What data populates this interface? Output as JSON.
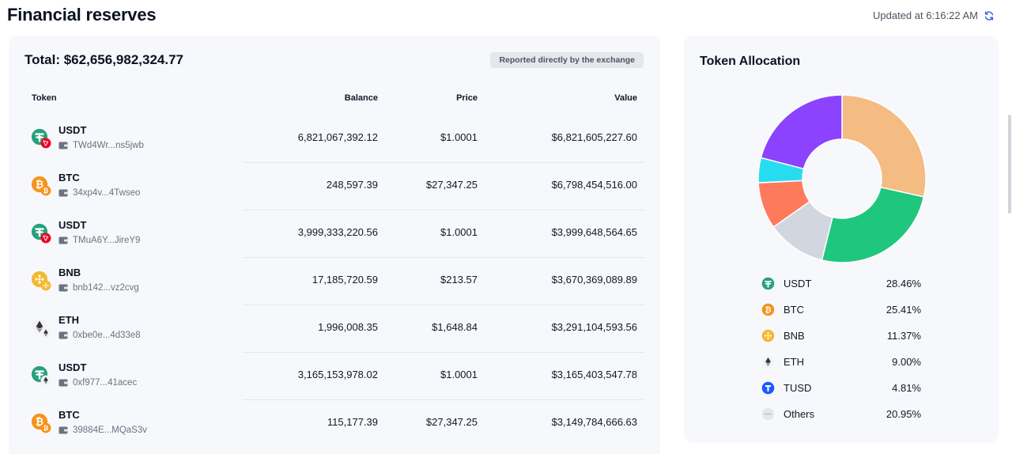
{
  "header": {
    "title": "Financial reserves",
    "updated": "Updated at 6:16:22 AM"
  },
  "reserves": {
    "total": "Total: $62,656,982,324.77",
    "badge": "Reported directly by the exchange",
    "columns": [
      "Token",
      "Balance",
      "Price",
      "Value"
    ],
    "rows": [
      {
        "token": "USDT",
        "icon": "usdt-icon",
        "chain": "tron-icon",
        "address": "TWd4Wr...ns5jwb",
        "balance": "6,821,067,392.12",
        "price": "$1.0001",
        "value": "$6,821,605,227.60"
      },
      {
        "token": "BTC",
        "icon": "btc-icon",
        "chain": "btc-icon",
        "address": "34xp4v...4Twseo",
        "balance": "248,597.39",
        "price": "$27,347.25",
        "value": "$6,798,454,516.00"
      },
      {
        "token": "USDT",
        "icon": "usdt-icon",
        "chain": "tron-icon",
        "address": "TMuA6Y...JireY9",
        "balance": "3,999,333,220.56",
        "price": "$1.0001",
        "value": "$3,999,648,564.65"
      },
      {
        "token": "BNB",
        "icon": "bnb-icon",
        "chain": "bnb-icon",
        "address": "bnb142...vz2cvg",
        "balance": "17,185,720.59",
        "price": "$213.57",
        "value": "$3,670,369,089.89"
      },
      {
        "token": "ETH",
        "icon": "eth-icon",
        "chain": "eth-icon",
        "address": "0xbe0e...4d33e8",
        "balance": "1,996,008.35",
        "price": "$1,648.84",
        "value": "$3,291,104,593.56"
      },
      {
        "token": "USDT",
        "icon": "usdt-icon",
        "chain": "eth-icon",
        "address": "0xf977...41acec",
        "balance": "3,165,153,978.02",
        "price": "$1.0001",
        "value": "$3,165,403,547.78"
      },
      {
        "token": "BTC",
        "icon": "btc-icon",
        "chain": "btc-icon",
        "address": "39884E...MQaS3v",
        "balance": "115,177.39",
        "price": "$27,347.25",
        "value": "$3,149,784,666.63"
      }
    ]
  },
  "allocation": {
    "title": "Token Allocation",
    "items": [
      {
        "name": "USDT",
        "pct": "28.46%",
        "value": 28.46,
        "color": "#f4bb82",
        "icon": "usdt-icon"
      },
      {
        "name": "BTC",
        "pct": "25.41%",
        "value": 25.41,
        "color": "#1fc77e",
        "icon": "btc-icon"
      },
      {
        "name": "BNB",
        "pct": "11.37%",
        "value": 11.37,
        "color": "#d2d6de",
        "icon": "bnb-icon"
      },
      {
        "name": "ETH",
        "pct": "9.00%",
        "value": 9.0,
        "color": "#ff7a5c",
        "icon": "eth-icon"
      },
      {
        "name": "TUSD",
        "pct": "4.81%",
        "value": 4.81,
        "color": "#28dcf0",
        "icon": "tusd-icon"
      },
      {
        "name": "Others",
        "pct": "20.95%",
        "value": 20.95,
        "color": "#8b43ff",
        "icon": "others-icon"
      }
    ]
  },
  "chart_data": {
    "type": "pie",
    "categories": [
      "USDT",
      "BTC",
      "BNB",
      "ETH",
      "TUSD",
      "Others"
    ],
    "values": [
      28.46,
      25.41,
      11.37,
      9.0,
      4.81,
      20.95
    ],
    "title": "Token Allocation"
  }
}
